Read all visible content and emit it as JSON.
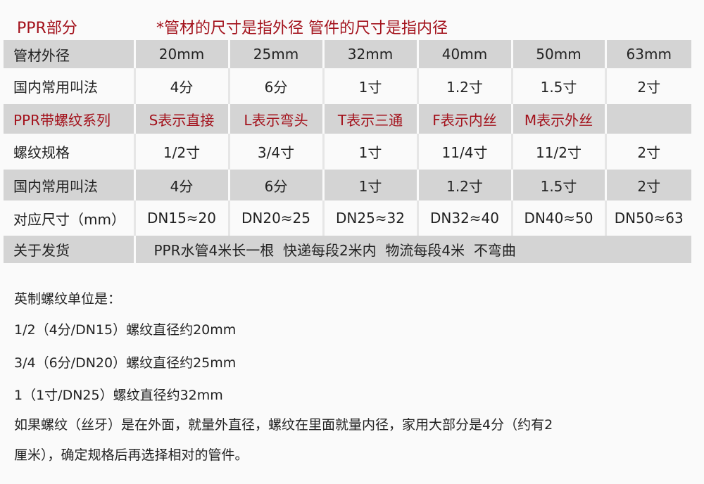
{
  "header": {
    "section": "PPR部分",
    "note": "*管材的尺寸是指外径 管件的尺寸是指内径"
  },
  "table": {
    "rows": [
      {
        "style": "g",
        "red": false,
        "cells": [
          "管材外径",
          "20mm",
          "25mm",
          "32mm",
          "40mm",
          "50mm",
          "63mm"
        ]
      },
      {
        "style": "w",
        "red": false,
        "cells": [
          "国内常用叫法",
          "4分",
          "6分",
          "1寸",
          "1.2寸",
          "1.5寸",
          "2寸"
        ]
      },
      {
        "style": "g",
        "red": true,
        "cells": [
          "PPR带螺纹系列",
          "S表示直接",
          "L表示弯头",
          "T表示三通",
          "F表示内丝",
          "M表示外丝",
          ""
        ]
      },
      {
        "style": "w",
        "red": false,
        "cells": [
          "螺纹规格",
          "1/2寸",
          "3/4寸",
          "1寸",
          "11/4寸",
          "11/2寸",
          "2寸"
        ]
      },
      {
        "style": "g",
        "red": false,
        "cells": [
          "国内常用叫法",
          "4分",
          "6分",
          "1寸",
          "1.2寸",
          "1.5寸",
          "2寸"
        ]
      },
      {
        "style": "w",
        "red": false,
        "cells": [
          "对应尺寸（mm）",
          "DN15≈20",
          "DN20≈25",
          "DN25≈32",
          "DN32≈40",
          "DN40≈50",
          "DN50≈63"
        ]
      }
    ],
    "shipping": {
      "label": "关于发货",
      "text": "PPR水管4米长一根  快递每段2米内  物流每段4米  不弯曲"
    }
  },
  "notes": [
    "英制螺纹单位是：",
    "1/2（4分/DN15）螺纹直径约20mm",
    "3/4（6分/DN20）螺纹直径约25mm",
    "1（1寸/DN25）螺纹直径约32mm",
    "如果螺纹（丝牙）是在外面，就量外直径，螺纹在里面就量内径，家用大部分是4分（约有2",
    "厘米），确定规格后再选择相对的管件。"
  ],
  "colors": {
    "accent": "#a3121c",
    "row_gray": "#d4d4d4"
  }
}
